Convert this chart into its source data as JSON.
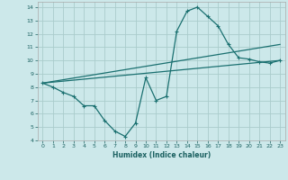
{
  "xlabel": "Humidex (Indice chaleur)",
  "bg_color": "#cce8ea",
  "grid_color": "#aacccc",
  "line_color": "#1a7070",
  "xlim": [
    -0.5,
    23.5
  ],
  "ylim": [
    4,
    14.4
  ],
  "xticks": [
    0,
    1,
    2,
    3,
    4,
    5,
    6,
    7,
    8,
    9,
    10,
    11,
    12,
    13,
    14,
    15,
    16,
    17,
    18,
    19,
    20,
    21,
    22,
    23
  ],
  "yticks": [
    4,
    5,
    6,
    7,
    8,
    9,
    10,
    11,
    12,
    13,
    14
  ],
  "line1_x": [
    0,
    1,
    2,
    3,
    4,
    5,
    6,
    7,
    8,
    9,
    10,
    11,
    12,
    13,
    14,
    15,
    16,
    17,
    18,
    19,
    20,
    21,
    22,
    23
  ],
  "line1_y": [
    8.3,
    8.0,
    7.6,
    7.3,
    6.6,
    6.6,
    5.5,
    4.7,
    4.3,
    5.3,
    8.7,
    7.0,
    7.3,
    12.2,
    13.7,
    14.0,
    13.3,
    12.6,
    11.2,
    10.2,
    10.1,
    9.9,
    9.8,
    10.0
  ],
  "line2_x": [
    0,
    23
  ],
  "line2_y": [
    8.3,
    11.2
  ],
  "line3_x": [
    0,
    23
  ],
  "line3_y": [
    8.3,
    10.0
  ]
}
